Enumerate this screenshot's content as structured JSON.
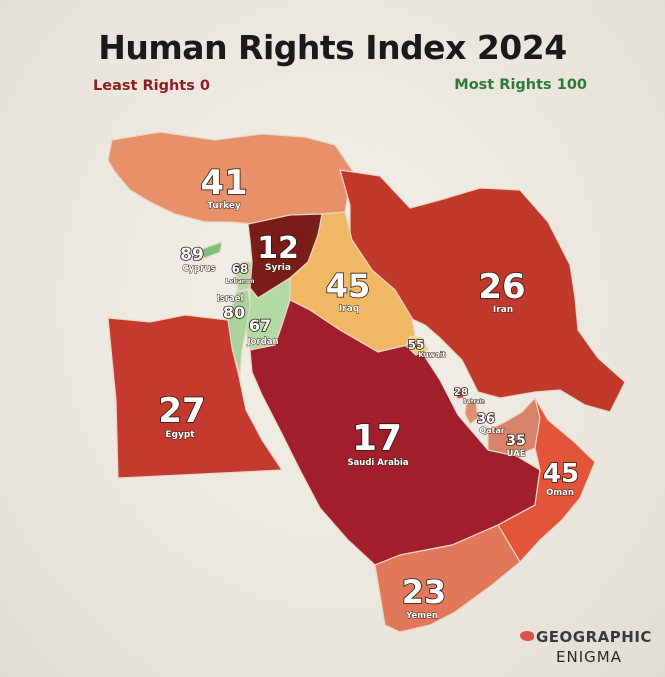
{
  "title": "Human Rights Index 2024",
  "legend": {
    "min_label": "Least Rights 0",
    "max_label": "Most Rights 100",
    "min_color": "#8b1f22",
    "max_color": "#2f7a35"
  },
  "countries": {
    "turkey": {
      "name": "Turkey",
      "score": "41",
      "color": "#e8906a"
    },
    "syria": {
      "name": "Syria",
      "score": "12",
      "color": "#7a1c17"
    },
    "cyprus": {
      "name": "Cyprus",
      "score": "89",
      "color": "#7fbf77"
    },
    "lebanon": {
      "name": "Lebanon",
      "score": "68",
      "color": "#b9d8a6"
    },
    "israel": {
      "name": "Israel",
      "score": "80",
      "color": "#a8d39a"
    },
    "jordan": {
      "name": "Jordan",
      "score": "67",
      "color": "#b3d9a4"
    },
    "iraq": {
      "name": "Iraq",
      "score": "45",
      "color": "#f0b865"
    },
    "iran": {
      "name": "Iran",
      "score": "26",
      "color": "#c0392b"
    },
    "kuwait": {
      "name": "Kuwait",
      "score": "55",
      "color": "#f4cf7e"
    },
    "bahrain": {
      "name": "Bahrain",
      "score": "28",
      "color": "#d0523c"
    },
    "qatar": {
      "name": "Qatar",
      "score": "36",
      "color": "#e28e70"
    },
    "uae": {
      "name": "UAE",
      "score": "35",
      "color": "#d8826a"
    },
    "oman": {
      "name": "Oman",
      "score": "45",
      "color": "#e2553a"
    },
    "saudi_arabia": {
      "name": "Saudi Arabia",
      "score": "17",
      "color": "#a11f2c"
    },
    "egypt": {
      "name": "Egypt",
      "score": "27",
      "color": "#c6392e"
    },
    "yemen": {
      "name": "Yemen",
      "score": "23",
      "color": "#e2785a"
    }
  },
  "logo": {
    "line1": "GEOGRAPHIC",
    "line2": "ENIGMA"
  }
}
